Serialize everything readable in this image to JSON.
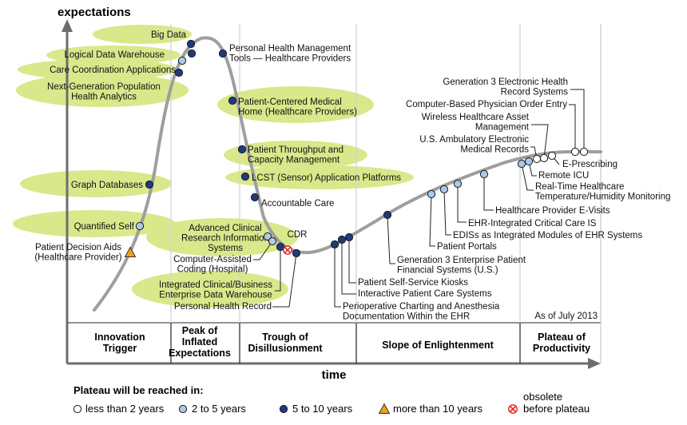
{
  "chart_data": {
    "type": "hype-cycle",
    "y_axis_label": "expectations",
    "x_axis_label": "time",
    "as_of": "As of July 2013",
    "colors": {
      "curve": "#9e9e9e",
      "highlight": "#d9e88a",
      "lt2": "#ffffff",
      "y2to5": "#a9c9ec",
      "y5to10": "#1f3b7e",
      "gt10": "#f0a020",
      "obsolete": "#e02020",
      "axis": "#6d6d6d"
    },
    "phases": [
      {
        "id": "innovation-trigger",
        "lines": [
          "Innovation",
          "Trigger"
        ]
      },
      {
        "id": "peak",
        "lines": [
          "Peak of",
          "Inflated",
          "Expectations"
        ]
      },
      {
        "id": "trough",
        "lines": [
          "Trough of",
          "Disillusionment"
        ]
      },
      {
        "id": "slope",
        "lines": [
          "Slope of Enlightenment"
        ]
      },
      {
        "id": "plateau",
        "lines": [
          "Plateau of",
          "Productivity"
        ]
      }
    ],
    "technologies": [
      {
        "name": "Patient Decision Aids (Healthcare Provider)",
        "lines": [
          "Patient Decision Aids",
          "(Healthcare Provider)"
        ],
        "phase": "Innovation Trigger",
        "plateau": "more than 10 years",
        "highlighted": false
      },
      {
        "name": "Quantified Self",
        "lines": [
          "Quantified Self"
        ],
        "phase": "Innovation Trigger",
        "plateau": "2 to 5 years",
        "highlighted": true
      },
      {
        "name": "Graph Databases",
        "lines": [
          "Graph Databases"
        ],
        "phase": "Innovation Trigger",
        "plateau": "5 to 10 years",
        "highlighted": true
      },
      {
        "name": "Next-Generation Population Health Analytics",
        "lines": [
          "Next-Generation Population",
          "Health Analytics"
        ],
        "phase": "Peak of Inflated Expectations",
        "plateau": "5 to 10 years",
        "highlighted": true
      },
      {
        "name": "Care Coordination Applications",
        "lines": [
          "Care Coordination Applications"
        ],
        "phase": "Peak of Inflated Expectations",
        "plateau": "2 to 5 years",
        "highlighted": true
      },
      {
        "name": "Logical Data Warehouse",
        "lines": [
          "Logical Data Warehouse"
        ],
        "phase": "Peak of Inflated Expectations",
        "plateau": "5 to 10 years",
        "highlighted": true
      },
      {
        "name": "Big Data",
        "lines": [
          "Big Data"
        ],
        "phase": "Peak of Inflated Expectations",
        "plateau": "5 to 10 years",
        "highlighted": true
      },
      {
        "name": "Personal Health Management Tools — Healthcare Providers",
        "lines": [
          "Personal Health Management",
          "Tools — Healthcare Providers"
        ],
        "phase": "Peak of Inflated Expectations",
        "plateau": "5 to 10 years",
        "highlighted": false
      },
      {
        "name": "Patient-Centered Medical Home (Healthcare Providers)",
        "lines": [
          "Patient-Centered Medical",
          "Home (Healthcare Providers)"
        ],
        "phase": "Sliding into the Trough",
        "plateau": "5 to 10 years",
        "highlighted": true
      },
      {
        "name": "Patient Throughput and Capacity Management",
        "lines": [
          "Patient Throughput and",
          "Capacity Management"
        ],
        "phase": "Sliding into the Trough",
        "plateau": "5 to 10 years",
        "highlighted": true
      },
      {
        "name": "LCST (Sensor) Application Platforms",
        "lines": [
          "LCST (Sensor) Application Platforms"
        ],
        "phase": "Sliding into the Trough",
        "plateau": "5 to 10 years",
        "highlighted": true
      },
      {
        "name": "Accountable Care",
        "lines": [
          "Accountable Care"
        ],
        "phase": "Sliding into the Trough",
        "plateau": "5 to 10 years",
        "highlighted": false
      },
      {
        "name": "Advanced Clinical Research Information Systems",
        "lines": [
          "Advanced Clinical",
          "Research Information",
          "Systems"
        ],
        "phase": "Trough of Disillusionment",
        "plateau": "2 to 5 years",
        "highlighted": true
      },
      {
        "name": "Computer-Assisted Coding (Hospital)",
        "lines": [
          "Computer-Assisted",
          "Coding (Hospital)"
        ],
        "phase": "Trough of Disillusionment",
        "plateau": "2 to 5 years",
        "highlighted": false
      },
      {
        "name": "Integrated Clinical/Business Enterprise Data Warehouse",
        "lines": [
          "Integrated Clinical/Business",
          "Enterprise Data Warehouse"
        ],
        "phase": "Trough of Disillusionment",
        "plateau": "5 to 10 years",
        "highlighted": true
      },
      {
        "name": "CDR",
        "lines": [
          "CDR"
        ],
        "phase": "Trough of Disillusionment",
        "plateau": "obsolete before plateau",
        "highlighted": false
      },
      {
        "name": "Personal Health Record",
        "lines": [
          "Personal Health Record"
        ],
        "phase": "Trough of Disillusionment",
        "plateau": "5 to 10 years",
        "highlighted": false
      },
      {
        "name": "Perioperative Charting and Anesthesia Documentation Within the EHR",
        "lines": [
          "Perioperative Charting and Anesthesia",
          "Documentation Within the EHR"
        ],
        "phase": "Slope of Enlightenment",
        "plateau": "5 to 10 years",
        "highlighted": false
      },
      {
        "name": "Interactive Patient Care Systems",
        "lines": [
          "Interactive Patient Care Systems"
        ],
        "phase": "Slope of Enlightenment",
        "plateau": "5 to 10 years",
        "highlighted": false
      },
      {
        "name": "Patient Self-Service Kiosks",
        "lines": [
          "Patient Self-Service Kiosks"
        ],
        "phase": "Slope of Enlightenment",
        "plateau": "5 to 10 years",
        "highlighted": false
      },
      {
        "name": "Generation 3 Enterprise Patient Financial Systems (U.S.)",
        "lines": [
          "Generation 3 Enterprise Patient",
          "Financial Systems (U.S.)"
        ],
        "phase": "Slope of Enlightenment",
        "plateau": "5 to 10 years",
        "highlighted": false
      },
      {
        "name": "Patient Portals",
        "lines": [
          "Patient Portals"
        ],
        "phase": "Slope of Enlightenment",
        "plateau": "2 to 5 years",
        "highlighted": false
      },
      {
        "name": "EDISs as Integrated Modules of EHR Systems",
        "lines": [
          "EDISs as Integrated Modules of EHR Systems"
        ],
        "phase": "Slope of Enlightenment",
        "plateau": "2 to 5 years",
        "highlighted": false
      },
      {
        "name": "EHR-Integrated Critical Care IS",
        "lines": [
          "EHR-Integrated Critical Care IS"
        ],
        "phase": "Slope of Enlightenment",
        "plateau": "2 to 5 years",
        "highlighted": false
      },
      {
        "name": "Healthcare Provider E-Visits",
        "lines": [
          "Healthcare Provider E-Visits"
        ],
        "phase": "Slope of Enlightenment",
        "plateau": "2 to 5 years",
        "highlighted": false
      },
      {
        "name": "Real-Time Healthcare Temperature/Humidity Monitoring",
        "lines": [
          "Real-Time Healthcare",
          "Temperature/Humidity Monitoring"
        ],
        "phase": "Plateau of Productivity",
        "plateau": "2 to 5 years",
        "highlighted": false
      },
      {
        "name": "Remote ICU",
        "lines": [
          "Remote ICU"
        ],
        "phase": "Plateau of Productivity",
        "plateau": "2 to 5 years",
        "highlighted": false
      },
      {
        "name": "U.S. Ambulatory Electronic Medical Records",
        "lines": [
          "U.S. Ambulatory Electronic",
          "Medical Records"
        ],
        "phase": "Plateau of Productivity",
        "plateau": "less than 2 years",
        "highlighted": false
      },
      {
        "name": "Wireless Healthcare Asset Management",
        "lines": [
          "Wireless Healthcare Asset",
          "Management"
        ],
        "phase": "Plateau of Productivity",
        "plateau": "less than 2 years",
        "highlighted": false
      },
      {
        "name": "E-Prescribing",
        "lines": [
          "E-Prescribing"
        ],
        "phase": "Plateau of Productivity",
        "plateau": "less than 2 years",
        "highlighted": false
      },
      {
        "name": "Computer-Based Physician Order Entry",
        "lines": [
          "Computer-Based Physician Order Entry"
        ],
        "phase": "Plateau of Productivity",
        "plateau": "less than 2 years",
        "highlighted": false
      },
      {
        "name": "Generation 3 Electronic Health Record Systems",
        "lines": [
          "Generation 3 Electronic Health",
          "Record Systems"
        ],
        "phase": "Plateau of Productivity",
        "plateau": "less than 2 years",
        "highlighted": false
      }
    ],
    "legend": {
      "title": "Plateau will be reached in:",
      "items": [
        {
          "key": "lt2",
          "label": "less than 2 years"
        },
        {
          "key": "y2to5",
          "label": "2 to 5 years"
        },
        {
          "key": "y5to10",
          "label": "5 to 10 years"
        },
        {
          "key": "gt10",
          "label": "more than 10 years"
        },
        {
          "key": "obsolete",
          "lines": [
            "obsolete",
            "before plateau"
          ]
        }
      ]
    }
  }
}
